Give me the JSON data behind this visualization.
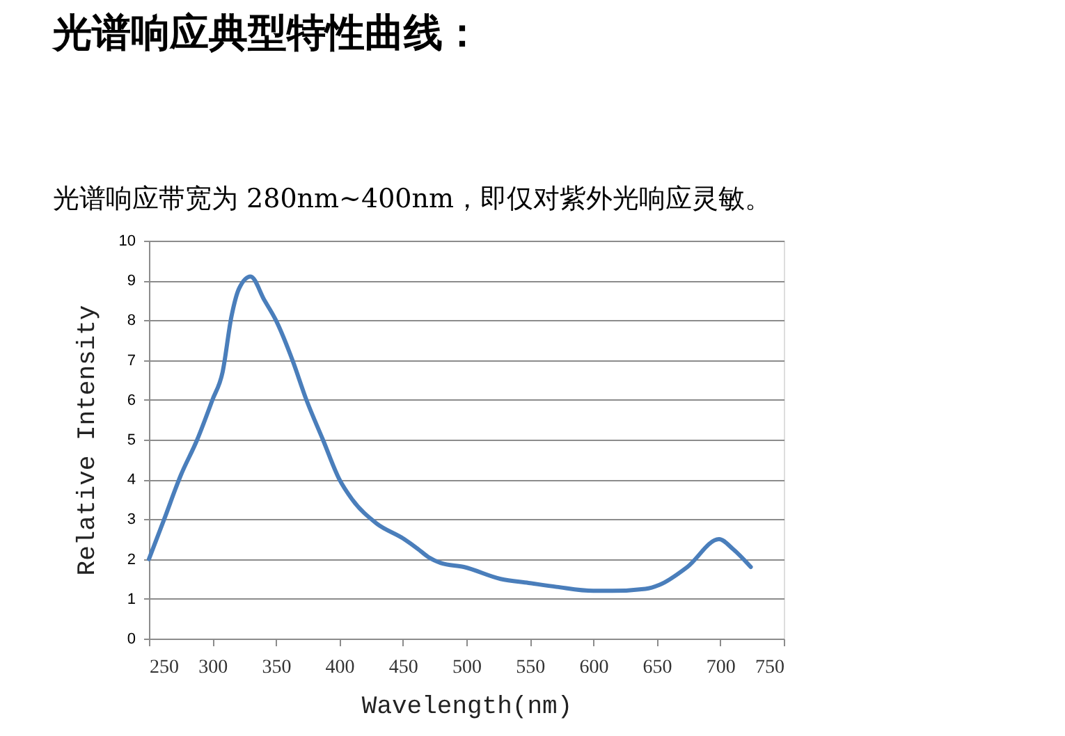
{
  "chart_data": {
    "type": "line",
    "title": "光谱响应典型特性曲线：",
    "subtitle": "光谱响应带宽为 280nm~400nm，即仅对紫外光响应灵敏。",
    "xlabel": "Wavelength(nm)",
    "ylabel": "Relative Intensity",
    "x": [
      250,
      262,
      275,
      288,
      300,
      308,
      315,
      321,
      330,
      341,
      350,
      363,
      374,
      387,
      400,
      410,
      429,
      451,
      462,
      470,
      480,
      498,
      527,
      549,
      571,
      600,
      615,
      641,
      652,
      674,
      699,
      710,
      724
    ],
    "values": [
      2.0,
      3.0,
      4.1,
      5.0,
      6.0,
      6.7,
      8.1,
      8.8,
      9.1,
      8.5,
      8.0,
      7.0,
      6.0,
      5.0,
      4.0,
      3.5,
      2.9,
      2.5,
      2.25,
      2.05,
      1.9,
      1.8,
      1.5,
      1.4,
      1.3,
      1.2,
      1.2,
      1.25,
      1.35,
      1.8,
      2.5,
      2.25,
      1.8
    ],
    "color": "#4a7ebb",
    "xlim": [
      250,
      750
    ],
    "xticks": [
      250,
      300,
      350,
      400,
      450,
      500,
      550,
      600,
      650,
      700,
      750
    ],
    "ylim": [
      0,
      10
    ],
    "yticks": [
      0,
      1,
      2,
      3,
      4,
      5,
      6,
      7,
      8,
      9,
      10
    ],
    "grid": "y"
  }
}
